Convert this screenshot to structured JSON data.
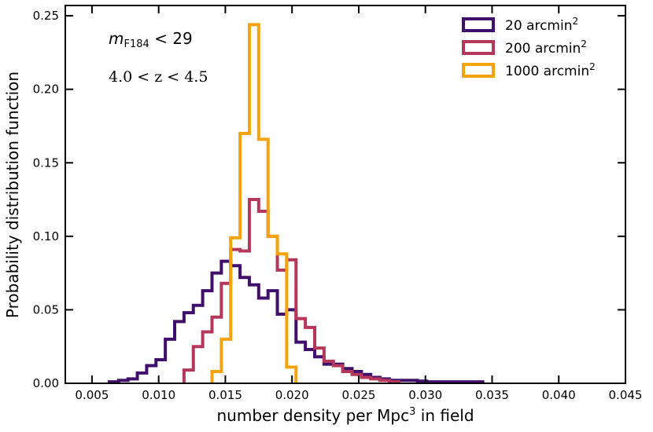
{
  "chart_data": {
    "type": "histogram-step",
    "xlabel": "number density per Mpc",
    "xlabel_sup": "3",
    "xlabel_tail": " in field",
    "ylabel": "Probability distribution function",
    "xlim": [
      0.003,
      0.045
    ],
    "ylim": [
      0.0,
      0.257
    ],
    "xticks": [
      0.005,
      0.01,
      0.015,
      0.02,
      0.025,
      0.03,
      0.035,
      0.04,
      0.045
    ],
    "xtick_labels": [
      "0.005",
      "0.010",
      "0.015",
      "0.020",
      "0.025",
      "0.030",
      "0.035",
      "0.040",
      "0.045"
    ],
    "yticks": [
      0.0,
      0.05,
      0.1,
      0.15,
      0.2,
      0.25
    ],
    "ytick_labels": [
      "0.00",
      "0.05",
      "0.10",
      "0.15",
      "0.20",
      "0.25"
    ],
    "bin_width": 0.0007,
    "annotations": {
      "magnitude": {
        "var": "m",
        "sub": "F184",
        "rest": " < 29"
      },
      "redshift": "4.0 < z < 4.5"
    },
    "legend_position": "top-right",
    "series": [
      {
        "name": "20 arcmin",
        "name_sup": "2",
        "color": "#3f0f6b",
        "bin_start": 0.0063,
        "values": [
          0.001,
          0.002,
          0.003,
          0.007,
          0.012,
          0.016,
          0.03,
          0.042,
          0.048,
          0.053,
          0.063,
          0.075,
          0.083,
          0.08,
          0.072,
          0.067,
          0.058,
          0.063,
          0.047,
          0.05,
          0.028,
          0.023,
          0.018,
          0.013,
          0.013,
          0.01,
          0.008,
          0.006,
          0.004,
          0.003,
          0.002,
          0.002,
          0.002,
          0.0015,
          0.001,
          0.001,
          0.001,
          0.001,
          0.001,
          0.001
        ]
      },
      {
        "name": "200 arcmin",
        "name_sup": "2",
        "color": "#b5375a",
        "bin_start": 0.0119,
        "values": [
          0.009,
          0.025,
          0.035,
          0.045,
          0.068,
          0.091,
          0.09,
          0.125,
          0.117,
          0.1,
          0.077,
          0.084,
          0.044,
          0.038,
          0.024,
          0.015,
          0.012,
          0.008,
          0.006,
          0.004,
          0.003,
          0.002,
          0.001
        ]
      },
      {
        "name": "1000 arcmin",
        "name_sup": "2",
        "color": "#f5a30c",
        "bin_start": 0.014,
        "values": [
          0.008,
          0.03,
          0.099,
          0.17,
          0.244,
          0.166,
          0.1,
          0.088,
          0.011
        ]
      }
    ]
  }
}
